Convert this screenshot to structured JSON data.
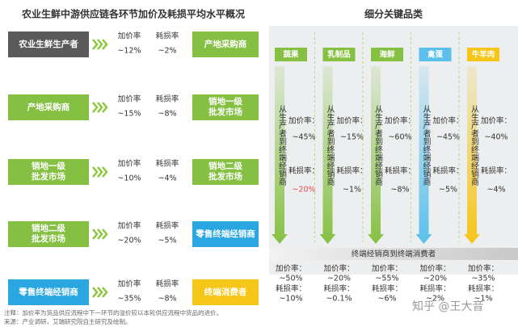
{
  "left": {
    "title": "农业生鲜中游供应链各环节加价及耗损平均水平概况",
    "markup_label": "加价率",
    "loss_label": "耗损率",
    "stages": [
      {
        "from": "农业生鲜生产者",
        "markup": "~12%",
        "loss": "~2%",
        "to": "产地采购商"
      },
      {
        "from": "产地采购商",
        "markup": "~15%",
        "loss": "~8%",
        "to": "销地一级批发市场"
      },
      {
        "from": "销地一级批发市场",
        "markup": "~10%",
        "loss": "~4%",
        "to": "销地二级批发市场"
      },
      {
        "from": "销地二级批发市场",
        "markup": "~20%",
        "loss": "~5%",
        "to": "零售终端经销商"
      },
      {
        "from": "零售终端经销商",
        "markup": "~35%",
        "loss": "~8%",
        "to": "终端消费者"
      }
    ]
  },
  "right": {
    "title": "细分关键品类",
    "upstream_label": "从生产者到终端经销商",
    "downstream_label": "终端经销商到终端消费者",
    "markup_label": "加价率：",
    "loss_label": "耗损率：",
    "categories": [
      {
        "name": "蔬果",
        "upstream_markup": "~45%",
        "upstream_loss": "~20%",
        "downstream_markup": "~50%",
        "downstream_loss": "~10%"
      },
      {
        "name": "乳制品",
        "upstream_markup": "~15%",
        "upstream_loss": "~1%",
        "downstream_markup": "~20%",
        "downstream_loss": "~0.1%"
      },
      {
        "name": "海鲜",
        "upstream_markup": "~60%",
        "upstream_loss": "~8%",
        "downstream_markup": "~55%",
        "downstream_loss": "~6%"
      },
      {
        "name": "禽蛋",
        "upstream_markup": "~45%",
        "upstream_loss": "~5%",
        "downstream_markup": "~20%",
        "downstream_loss": "~2%"
      },
      {
        "name": "牛羊肉",
        "upstream_markup": "~40%",
        "upstream_loss": "~4%",
        "downstream_markup": "~35%",
        "downstream_loss": "~1%"
      }
    ]
  },
  "notes": [
    "注释：加价率为货品供应流程中下一环节的溢价较以本轮供应流程中货品的进价。",
    "来源：产业调研，艾瑞研究院自主研究及绘制。"
  ],
  "watermark": "知乎 @王大音"
}
